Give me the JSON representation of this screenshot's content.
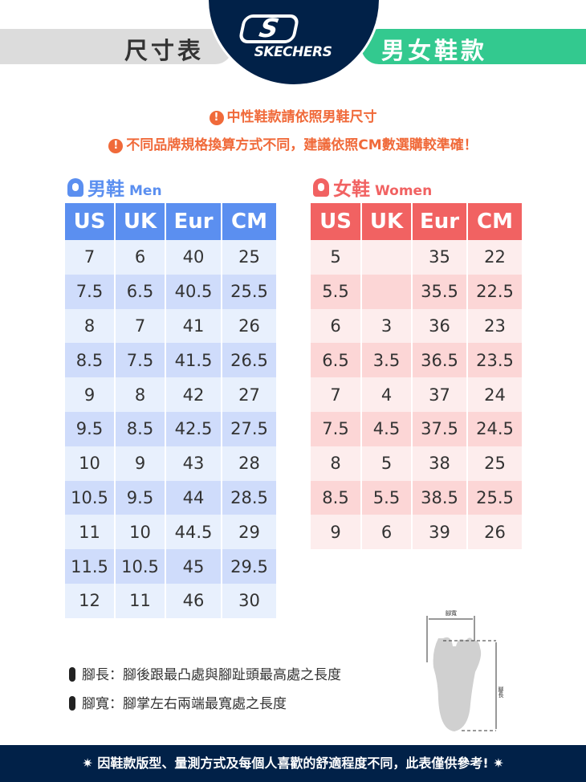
{
  "header": {
    "left_title": "尺寸表",
    "brand": "SKECHERS",
    "brand_initial": "S",
    "right_title": "男女鞋款"
  },
  "notices": [
    "中性鞋款請依照男鞋尺寸",
    "不同品牌規格換算方式不同，建議依照CM數選購較準確！"
  ],
  "colors": {
    "men": "#5b8ff0",
    "women": "#f16262",
    "notice": "#f06a3a",
    "brand": "#012148",
    "accent": "#33c98f"
  },
  "men": {
    "title": "男鞋",
    "subtitle": "Men",
    "columns": [
      "US",
      "UK",
      "Eur",
      "CM"
    ],
    "rows": [
      [
        "7",
        "6",
        "40",
        "25"
      ],
      [
        "7.5",
        "6.5",
        "40.5",
        "25.5"
      ],
      [
        "8",
        "7",
        "41",
        "26"
      ],
      [
        "8.5",
        "7.5",
        "41.5",
        "26.5"
      ],
      [
        "9",
        "8",
        "42",
        "27"
      ],
      [
        "9.5",
        "8.5",
        "42.5",
        "27.5"
      ],
      [
        "10",
        "9",
        "43",
        "28"
      ],
      [
        "10.5",
        "9.5",
        "44",
        "28.5"
      ],
      [
        "11",
        "10",
        "44.5",
        "29"
      ],
      [
        "11.5",
        "10.5",
        "45",
        "29.5"
      ],
      [
        "12",
        "11",
        "46",
        "30"
      ]
    ]
  },
  "women": {
    "title": "女鞋",
    "subtitle": "Women",
    "columns": [
      "US",
      "UK",
      "Eur",
      "CM"
    ],
    "rows": [
      [
        "5",
        "",
        "35",
        "22"
      ],
      [
        "5.5",
        "",
        "35.5",
        "22.5"
      ],
      [
        "6",
        "3",
        "36",
        "23"
      ],
      [
        "6.5",
        "3.5",
        "36.5",
        "23.5"
      ],
      [
        "7",
        "4",
        "37",
        "24"
      ],
      [
        "7.5",
        "4.5",
        "37.5",
        "24.5"
      ],
      [
        "8",
        "5",
        "38",
        "25"
      ],
      [
        "8.5",
        "5.5",
        "38.5",
        "25.5"
      ],
      [
        "9",
        "6",
        "39",
        "26"
      ]
    ]
  },
  "definitions": [
    "腳長：腳後跟最凸處與腳趾頭最高處之長度",
    "腳寬：腳掌左右兩端最寬處之長度"
  ],
  "diagram": {
    "width_label": "腳寬",
    "length_label": "腳長"
  },
  "footer": "✷ 因鞋款版型、量測方式及每個人喜歡的舒適程度不同，此表僅供參考! ✷"
}
